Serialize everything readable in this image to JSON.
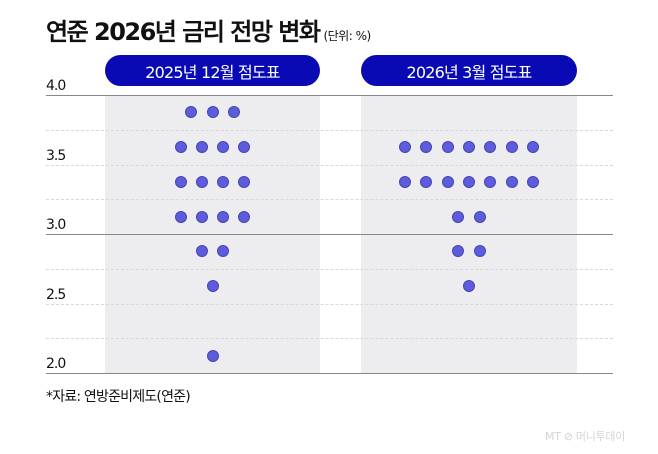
{
  "title": "연준 2026년 금리 전망 변화",
  "unit": "(단위: %)",
  "panels": [
    {
      "label": "2025년 12월 점도표"
    },
    {
      "label": "2026년 3월 점도표"
    }
  ],
  "y_labels": [
    "4.0",
    "3.5",
    "3.0",
    "2.5",
    "2.0"
  ],
  "source": "*자료: 연방준비제도(연준)",
  "logo": "MT ⊘ 머니투데이",
  "colors": {
    "pill": "#0a0ab4",
    "dot": "#5c5cdd",
    "panel": "#ededf0"
  },
  "chart_data": {
    "type": "scatter",
    "title": "연준 2026년 금리 전망 변화",
    "subtitle": "(단위: %)",
    "ylabel": "%",
    "ylim": [
      2.0,
      4.0
    ],
    "yticks": [
      4.0,
      3.5,
      3.0,
      2.5,
      2.0
    ],
    "grid": true,
    "series": [
      {
        "name": "2025년 12월 점도표",
        "points": [
          {
            "rate": 3.875,
            "count": 3
          },
          {
            "rate": 3.625,
            "count": 4
          },
          {
            "rate": 3.375,
            "count": 4
          },
          {
            "rate": 3.125,
            "count": 4
          },
          {
            "rate": 2.875,
            "count": 2
          },
          {
            "rate": 2.625,
            "count": 1
          },
          {
            "rate": 2.125,
            "count": 1
          }
        ]
      },
      {
        "name": "2026년 3월 점도표",
        "points": [
          {
            "rate": 3.625,
            "count": 7
          },
          {
            "rate": 3.375,
            "count": 7
          },
          {
            "rate": 3.125,
            "count": 2
          },
          {
            "rate": 2.875,
            "count": 2
          },
          {
            "rate": 2.625,
            "count": 1
          }
        ]
      }
    ],
    "source": "*자료: 연방준비제도(연준)"
  }
}
